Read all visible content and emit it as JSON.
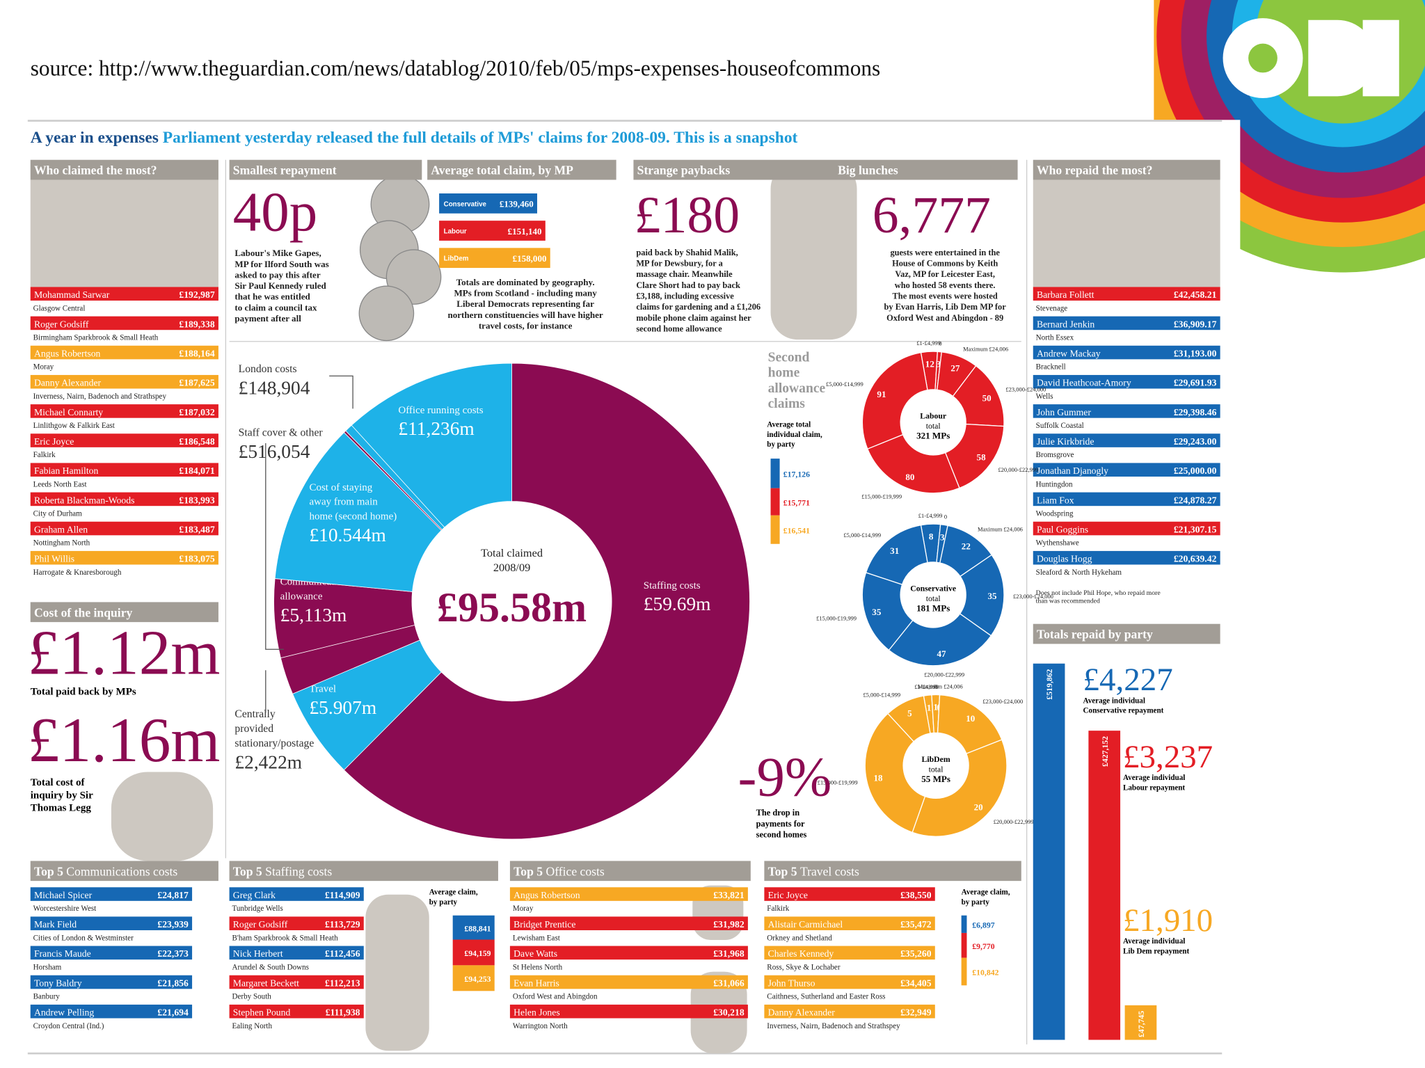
{
  "source": "source: http://www.theguardian.com/news/datablog/2010/feb/05/mps-expenses-houseofcommons",
  "colors": {
    "con": "#1668b4",
    "lab": "#e31e25",
    "ld": "#f7a823",
    "maroon": "#8b0b52",
    "cyan": "#1eb2e8"
  },
  "headline": {
    "lead": "A year in expenses",
    "text": "Parliament yesterday released the full details of MPs' claims for 2008-09. This is a snapshot"
  },
  "who_claimed": {
    "title": "Who claimed the most?",
    "rows": [
      {
        "name": "Mohammad Sarwar",
        "amount": "£192,987",
        "area": "Glasgow Central",
        "party": "lab"
      },
      {
        "name": "Roger Godsiff",
        "amount": "£189,338",
        "area": "Birmingham Sparkbrook & Small Heath",
        "party": "lab"
      },
      {
        "name": "Angus Robertson",
        "amount": "£188,164",
        "area": "Moray",
        "party": "ld"
      },
      {
        "name": "Danny Alexander",
        "amount": "£187,625",
        "area": "Inverness, Nairn, Badenoch and Strathspey",
        "party": "ld"
      },
      {
        "name": "Michael Connarty",
        "amount": "£187,032",
        "area": "Linlithgow & Falkirk East",
        "party": "lab"
      },
      {
        "name": "Eric Joyce",
        "amount": "£186,548",
        "area": "Falkirk",
        "party": "lab"
      },
      {
        "name": "Fabian Hamilton",
        "amount": "£184,071",
        "area": "Leeds North East",
        "party": "lab"
      },
      {
        "name": "Roberta Blackman-Woods",
        "amount": "£183,993",
        "area": "City of Durham",
        "party": "lab"
      },
      {
        "name": "Graham Allen",
        "amount": "£183,487",
        "area": "Nottingham North",
        "party": "lab"
      },
      {
        "name": "Phil Willis",
        "amount": "£183,075",
        "area": "Harrogate & Knaresborough",
        "party": "ld"
      }
    ]
  },
  "smallest_repayment": {
    "title": "Smallest repayment",
    "big": "40p",
    "text": [
      "Labour's Mike Gapes,",
      "MP for Ilford South was",
      "asked to pay this after",
      "Sir Paul Kennedy ruled",
      "that he was entitled",
      "to claim a council tax",
      "payment after all"
    ]
  },
  "average_claim": {
    "title": "Average total claim, by MP",
    "bars": [
      {
        "party": "Conservative",
        "key": "con",
        "value": 139460,
        "label": "£139,460"
      },
      {
        "party": "Labour",
        "key": "lab",
        "value": 151140,
        "label": "£151,140"
      },
      {
        "party": "LibDem",
        "key": "ld",
        "value": 158000,
        "label": "£158,000"
      }
    ],
    "text": [
      "Totals are dominated by geography.",
      "MPs from Scotland - including many",
      "Liberal Democrats representing far",
      "northern constituencies will have higher",
      "travel costs, for instance"
    ]
  },
  "strange_paybacks": {
    "title": "Strange paybacks",
    "big": "£180",
    "text": [
      "paid back by Shahid Malik,",
      "MP for Dewsbury, for a",
      "massage chair. Meanwhile",
      "Clare Short had to pay back",
      "£3,188, including excessive",
      "claims for gardening and a £1,206",
      "mobile phone claim against her",
      "second home allowance"
    ]
  },
  "big_lunches": {
    "title": "Big lunches",
    "big": "6,777",
    "text": [
      "guests were entertained in the",
      "House of Commons by Keith",
      "Vaz, MP for Leicester East,",
      "who hosted 58 events there.",
      "The most events were hosted",
      "by Evan Harris, Lib Dem MP for",
      "Oxford West and Abingdon - 89"
    ]
  },
  "who_repaid": {
    "title": "Who repaid the most?",
    "rows": [
      {
        "name": "Barbara Follett",
        "amount": "£42,458.21",
        "area": "Stevenage",
        "party": "lab"
      },
      {
        "name": "Bernard Jenkin",
        "amount": "£36,909.17",
        "area": "North Essex",
        "party": "con"
      },
      {
        "name": "Andrew Mackay",
        "amount": "£31,193.00",
        "area": "Bracknell",
        "party": "con"
      },
      {
        "name": "David Heathcoat-Amory",
        "amount": "£29,691.93",
        "area": "Wells",
        "party": "con"
      },
      {
        "name": "John Gummer",
        "amount": "£29,398.46",
        "area": "Suffolk Coastal",
        "party": "con"
      },
      {
        "name": "Julie Kirkbride",
        "amount": "£29,243.00",
        "area": "Bromsgrove",
        "party": "con"
      },
      {
        "name": "Jonathan Djanogly",
        "amount": "£25,000.00",
        "area": "Huntingdon",
        "party": "con"
      },
      {
        "name": "Liam Fox",
        "amount": "£24,878.27",
        "area": "Woodspring",
        "party": "con"
      },
      {
        "name": "Paul Goggins",
        "amount": "£21,307.15",
        "area": "Wythenshawe",
        "party": "lab"
      },
      {
        "name": "Douglas Hogg",
        "amount": "£20,639.42",
        "area": "Sleaford & North Hykeham",
        "party": "con"
      }
    ],
    "note": [
      "Does not include Phil Hope, who repaid more",
      "than was recommended"
    ]
  },
  "inquiry": {
    "title": "Cost of the inquiry",
    "big1": "£1.12m",
    "label1": "Total paid back by MPs",
    "big2": "£1.16m",
    "label2": [
      "Total cost of",
      "inquiry by Sir",
      "Thomas Legg"
    ]
  },
  "donut": {
    "center": [
      "Total claimed",
      "2008/09"
    ],
    "total": "£95.58m",
    "segments": [
      {
        "name": [
          "Staffing costs"
        ],
        "value": 59.69,
        "label": "£59.69m",
        "color": "maroon"
      },
      {
        "name": [
          "Travel"
        ],
        "value": 5.907,
        "label": "£5.907m",
        "color": "cyan"
      },
      {
        "name": [
          "Centrally",
          "provided",
          "stationary/postage"
        ],
        "value": 2.422,
        "label": "£2,422m",
        "color": "maroon"
      },
      {
        "name": [
          "Communications",
          "allowance"
        ],
        "value": 5.113,
        "label": "£5,113m",
        "color": "maroon"
      },
      {
        "name": [
          "Cost of staying",
          "away from main",
          "home (second home)"
        ],
        "value": 10.544,
        "label": "£10.544m",
        "color": "cyan"
      },
      {
        "name": [
          "London costs"
        ],
        "value": 0.148904,
        "label": "£148,904",
        "color": "maroon"
      },
      {
        "name": [
          "Staff cover & other"
        ],
        "value": 0.516054,
        "label": "£516,054",
        "color": "cyan"
      },
      {
        "name": [
          "Office running costs"
        ],
        "value": 11.236,
        "label": "£11,236m",
        "color": "cyan"
      }
    ]
  },
  "second_home": {
    "title": [
      "Second",
      "home",
      "allowance",
      "claims"
    ],
    "avg_title": [
      "Average total",
      "individual claim,",
      "by party"
    ],
    "averages": [
      {
        "key": "con",
        "value": 17126,
        "label": "£17,126"
      },
      {
        "key": "lab",
        "value": 15771,
        "label": "£15,771"
      },
      {
        "key": "ld",
        "value": 16541,
        "label": "£16,541"
      }
    ],
    "donuts": [
      {
        "key": "lab",
        "center": [
          "Labour",
          "total",
          "321 MPs"
        ],
        "segments": [
          {
            "range": "£1-£4,999",
            "count": 12
          },
          {
            "range": "0",
            "count": 3
          },
          {
            "range": "Maximum £24,006",
            "count": 27
          },
          {
            "range": "£23,000-£24,000",
            "count": 50
          },
          {
            "range": "£20,000-£22,999",
            "count": 58
          },
          {
            "range": "£15,000-£19,999",
            "count": 80
          },
          {
            "range": "£5,000-£14,999",
            "count": 91
          }
        ]
      },
      {
        "key": "con",
        "center": [
          "Conservative",
          "total",
          "181 MPs"
        ],
        "segments": [
          {
            "range": "£1-£4,999",
            "count": 8
          },
          {
            "range": "0",
            "count": 3
          },
          {
            "range": "Maximum £24,006",
            "count": 22
          },
          {
            "range": "£23,000-£24,000",
            "count": 35
          },
          {
            "range": "£20,000-£22,999",
            "count": 47
          },
          {
            "range": "£15,000-£19,999",
            "count": 35
          },
          {
            "range": "£5,000-£14,999",
            "count": 31
          }
        ]
      },
      {
        "key": "ld",
        "center": [
          "LibDem",
          "total",
          "55 MPs"
        ],
        "segments": [
          {
            "range": "£1-£4,999",
            "count": 1
          },
          {
            "range": "0",
            "count": 1
          },
          {
            "range": "Maximum £24,006",
            "count": 0
          },
          {
            "range": "£23,000-£24,000",
            "count": 10
          },
          {
            "range": "£20,000-£22,999",
            "count": 20
          },
          {
            "range": "£15,000-£19,999",
            "count": 18
          },
          {
            "range": "£5,000-£14,999",
            "count": 5
          }
        ]
      }
    ]
  },
  "drop": {
    "big": "-9%",
    "text": [
      "The drop in",
      "payments for",
      "second homes"
    ]
  },
  "totals_repaid": {
    "title": "Totals repaid by party",
    "bars": [
      {
        "key": "con",
        "value": 519862,
        "label": "£519,862",
        "big": "£4,227",
        "text": [
          "Average individual",
          "Conservative repayment"
        ]
      },
      {
        "key": "lab",
        "value": 427152,
        "label": "£427,152",
        "big": "£3,237",
        "text": [
          "Average individual",
          "Labour repayment"
        ]
      },
      {
        "key": "ld",
        "value": 47745,
        "label": "£47,745",
        "big": "£1,910",
        "text": [
          "Average individual",
          "Lib Dem repayment"
        ]
      }
    ]
  },
  "top5": [
    {
      "bold": "Top 5",
      "rest": "Communications costs",
      "rows": [
        {
          "name": "Michael Spicer",
          "amount": "£24,817",
          "area": "Worcestershire West",
          "party": "con"
        },
        {
          "name": "Mark Field",
          "amount": "£23,939",
          "area": "Cities of London & Westminster",
          "party": "con"
        },
        {
          "name": "Francis Maude",
          "amount": "£22,373",
          "area": "Horsham",
          "party": "con"
        },
        {
          "name": "Tony Baldry",
          "amount": "£21,856",
          "area": "Banbury",
          "party": "con"
        },
        {
          "name": "Andrew Pelling",
          "amount": "£21,694",
          "area": "Croydon Central (Ind.)",
          "party": "con"
        }
      ]
    },
    {
      "bold": "Top 5",
      "rest": "Staffing costs",
      "rows": [
        {
          "name": "Greg Clark",
          "amount": "£114,909",
          "area": "Tunbridge Wells",
          "party": "con"
        },
        {
          "name": "Roger Godsiff",
          "amount": "£113,729",
          "area": "B'ham Sparkbrook & Small Heath",
          "party": "lab"
        },
        {
          "name": "Nick Herbert",
          "amount": "£112,456",
          "area": "Arundel & South Downs",
          "party": "con"
        },
        {
          "name": "Margaret Beckett",
          "amount": "£112,213",
          "area": "Derby South",
          "party": "lab"
        },
        {
          "name": "Stephen Pound",
          "amount": "£111,938",
          "area": "Ealing North",
          "party": "lab"
        }
      ],
      "avg_title": [
        "Average claim,",
        "by party"
      ],
      "averages": [
        {
          "key": "con",
          "value": 88841,
          "label": "£88,841"
        },
        {
          "key": "lab",
          "value": 94159,
          "label": "£94,159"
        },
        {
          "key": "ld",
          "value": 94253,
          "label": "£94,253"
        }
      ]
    },
    {
      "bold": "Top 5",
      "rest": "Office costs",
      "rows": [
        {
          "name": "Angus Robertson",
          "amount": "£33,821",
          "area": "Moray",
          "party": "ld"
        },
        {
          "name": "Bridget Prentice",
          "amount": "£31,982",
          "area": "Lewisham East",
          "party": "lab"
        },
        {
          "name": "Dave Watts",
          "amount": "£31,968",
          "area": "St Helens North",
          "party": "lab"
        },
        {
          "name": "Evan Harris",
          "amount": "£31,066",
          "area": "Oxford West and Abingdon",
          "party": "ld"
        },
        {
          "name": "Helen Jones",
          "amount": "£30,218",
          "area": "Warrington North",
          "party": "lab"
        }
      ]
    },
    {
      "bold": "Top 5",
      "rest": "Travel costs",
      "rows": [
        {
          "name": "Eric Joyce",
          "amount": "£38,550",
          "area": "Falkirk",
          "party": "lab"
        },
        {
          "name": "Alistair Carmichael",
          "amount": "£35,472",
          "area": "Orkney and Shetland",
          "party": "ld"
        },
        {
          "name": "Charles Kennedy",
          "amount": "£35,260",
          "area": "Ross, Skye & Lochaber",
          "party": "ld"
        },
        {
          "name": "John Thurso",
          "amount": "£34,405",
          "area": "Caithness, Sutherland and Easter Ross",
          "party": "ld"
        },
        {
          "name": "Danny Alexander",
          "amount": "£32,949",
          "area": "Inverness, Nairn, Badenoch and Strathspey",
          "party": "ld"
        }
      ],
      "avg_title": [
        "Average claim,",
        "by party"
      ],
      "averages": [
        {
          "key": "con",
          "value": 6897,
          "label": "£6,897"
        },
        {
          "key": "lab",
          "value": 9770,
          "label": "£9,770"
        },
        {
          "key": "ld",
          "value": 10842,
          "label": "£10,842"
        }
      ]
    }
  ]
}
